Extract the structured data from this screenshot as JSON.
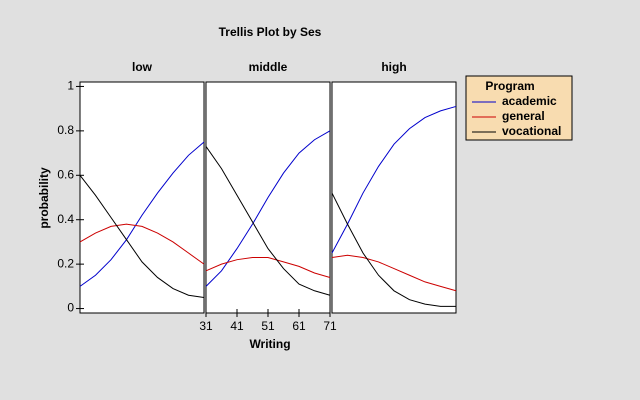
{
  "chart_data": {
    "type": "line",
    "title": "Trellis Plot by Ses",
    "x_label": "Writing",
    "y_label": "probability",
    "legend_title": "Program",
    "legend": "right",
    "x": [
      31,
      36,
      41,
      46,
      51,
      56,
      61,
      66,
      71
    ],
    "xlim": [
      31,
      71
    ],
    "xticks": [
      31,
      41,
      51,
      61,
      71
    ],
    "ylim": [
      -0.02,
      1.02
    ],
    "yticks": [
      0,
      0.2,
      0.4,
      0.6,
      0.8,
      1
    ],
    "series": [
      {
        "name": "academic",
        "color": "#0000cc"
      },
      {
        "name": "general",
        "color": "#cc0000"
      },
      {
        "name": "vocational",
        "color": "#000000"
      }
    ],
    "panels": [
      {
        "title": "low",
        "series": [
          {
            "values": [
              0.1,
              0.15,
              0.22,
              0.31,
              0.42,
              0.52,
              0.61,
              0.69,
              0.75
            ]
          },
          {
            "values": [
              0.3,
              0.34,
              0.37,
              0.38,
              0.37,
              0.34,
              0.3,
              0.25,
              0.2
            ]
          },
          {
            "values": [
              0.6,
              0.51,
              0.41,
              0.31,
              0.21,
              0.14,
              0.09,
              0.06,
              0.05
            ]
          }
        ]
      },
      {
        "title": "middle",
        "series": [
          {
            "values": [
              0.1,
              0.17,
              0.27,
              0.38,
              0.5,
              0.61,
              0.7,
              0.76,
              0.8
            ]
          },
          {
            "values": [
              0.17,
              0.2,
              0.22,
              0.23,
              0.23,
              0.21,
              0.19,
              0.16,
              0.14
            ]
          },
          {
            "values": [
              0.73,
              0.63,
              0.51,
              0.39,
              0.27,
              0.18,
              0.11,
              0.08,
              0.06
            ]
          }
        ]
      },
      {
        "title": "high",
        "series": [
          {
            "values": [
              0.25,
              0.38,
              0.52,
              0.64,
              0.74,
              0.81,
              0.86,
              0.89,
              0.91
            ]
          },
          {
            "values": [
              0.23,
              0.24,
              0.23,
              0.21,
              0.18,
              0.15,
              0.12,
              0.1,
              0.08
            ]
          },
          {
            "values": [
              0.52,
              0.38,
              0.25,
              0.15,
              0.08,
              0.04,
              0.02,
              0.01,
              0.01
            ]
          }
        ]
      }
    ]
  }
}
